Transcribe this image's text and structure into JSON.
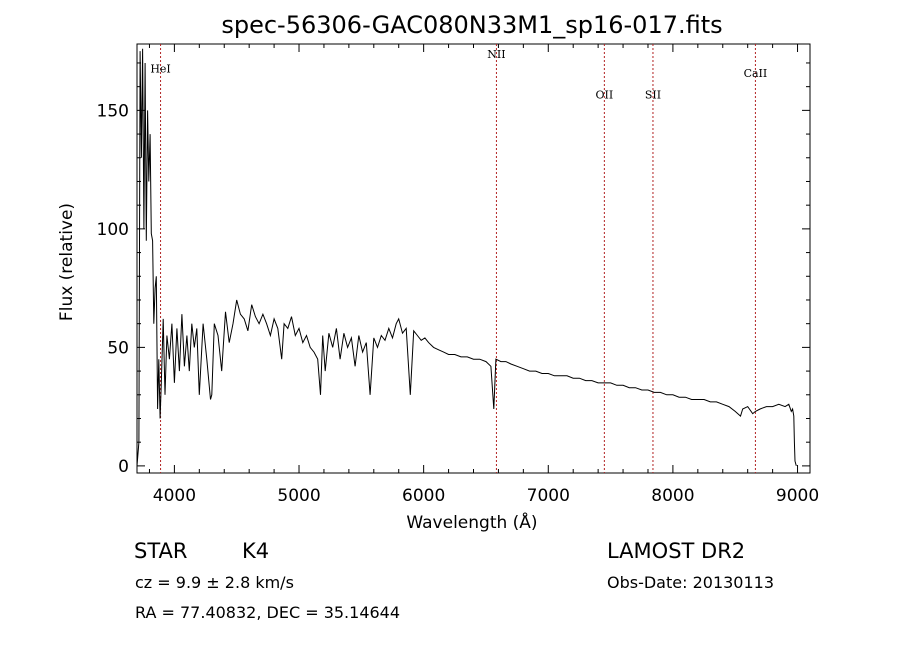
{
  "chart_data": {
    "type": "line",
    "title": "spec-56306-GAC080N33M1_sp16-017.fits",
    "xlabel": "Wavelength (Å)",
    "ylabel": "Flux (relative)",
    "xlim": [
      3700,
      9100
    ],
    "ylim": [
      -3,
      178
    ],
    "xticks": [
      4000,
      5000,
      6000,
      7000,
      8000,
      9000
    ],
    "yticks": [
      0,
      50,
      100,
      150
    ],
    "grid": false,
    "series": [
      {
        "x": [
          3700,
          3715,
          3725,
          3735,
          3745,
          3755,
          3765,
          3775,
          3785,
          3795,
          3805,
          3815,
          3825,
          3835,
          3845,
          3855,
          3865,
          3875,
          3885,
          3895,
          3910,
          3925,
          3940,
          3960,
          3980,
          4000,
          4020,
          4040,
          4060,
          4080,
          4100,
          4120,
          4140,
          4160,
          4180,
          4200,
          4230,
          4260,
          4290,
          4300,
          4320,
          4350,
          4380,
          4410,
          4440,
          4470,
          4500,
          4530,
          4560,
          4590,
          4620,
          4650,
          4680,
          4710,
          4740,
          4770,
          4800,
          4830,
          4861,
          4880,
          4910,
          4940,
          4970,
          5000,
          5030,
          5060,
          5090,
          5120,
          5150,
          5172,
          5190,
          5210,
          5240,
          5270,
          5300,
          5330,
          5360,
          5390,
          5420,
          5450,
          5480,
          5510,
          5540,
          5570,
          5600,
          5630,
          5660,
          5690,
          5720,
          5750,
          5780,
          5800,
          5830,
          5860,
          5893,
          5920,
          5950,
          5980,
          6010,
          6040,
          6080,
          6120,
          6160,
          6200,
          6250,
          6300,
          6350,
          6400,
          6450,
          6500,
          6540,
          6563,
          6580,
          6620,
          6660,
          6700,
          6750,
          6800,
          6850,
          6900,
          6950,
          7000,
          7050,
          7100,
          7150,
          7200,
          7250,
          7300,
          7350,
          7400,
          7450,
          7500,
          7550,
          7600,
          7650,
          7700,
          7750,
          7800,
          7850,
          7900,
          7950,
          8000,
          8050,
          8100,
          8150,
          8200,
          8250,
          8300,
          8350,
          8400,
          8450,
          8500,
          8542,
          8560,
          8600,
          8640,
          8662,
          8700,
          8750,
          8800,
          8850,
          8900,
          8930,
          8950,
          8960,
          8970,
          8975,
          8980,
          8990
        ],
        "values": [
          0,
          10,
          175,
          130,
          176,
          100,
          170,
          95,
          150,
          120,
          140,
          98,
          95,
          60,
          75,
          80,
          24,
          45,
          20,
          35,
          62,
          30,
          55,
          45,
          60,
          35,
          58,
          40,
          64,
          42,
          55,
          40,
          60,
          50,
          58,
          30,
          60,
          45,
          28,
          30,
          60,
          55,
          40,
          65,
          52,
          60,
          70,
          64,
          62,
          57,
          68,
          63,
          60,
          64,
          60,
          55,
          62,
          58,
          45,
          60,
          58,
          63,
          55,
          58,
          52,
          55,
          50,
          48,
          45,
          30,
          55,
          40,
          56,
          50,
          58,
          45,
          56,
          50,
          54,
          42,
          55,
          48,
          52,
          30,
          54,
          50,
          55,
          53,
          58,
          54,
          60,
          62,
          56,
          58,
          30,
          57,
          55,
          53,
          54,
          52,
          50,
          49,
          48,
          47,
          47,
          46,
          46,
          45,
          45,
          44,
          42,
          24,
          45,
          44,
          44,
          43,
          42,
          41,
          40,
          40,
          39,
          39,
          38,
          38,
          38,
          37,
          37,
          36,
          36,
          35,
          35,
          35,
          34,
          34,
          33,
          33,
          32,
          32,
          31,
          31,
          30,
          30,
          29,
          29,
          28,
          28,
          28,
          27,
          27,
          26,
          25,
          23,
          21,
          24,
          25,
          22,
          23,
          24,
          25,
          25,
          26,
          25,
          26,
          23,
          24,
          21,
          10,
          2,
          0
        ]
      }
    ],
    "markers": [
      {
        "label": "HeI",
        "x": 3889,
        "label_y": 166
      },
      {
        "label": "NII",
        "x": 6584,
        "label_y": 172
      },
      {
        "label": "OII",
        "x": 7450,
        "label_y": 155
      },
      {
        "label": "SII",
        "x": 7840,
        "label_y": 155
      },
      {
        "label": "CaII",
        "x": 8662,
        "label_y": 164
      }
    ]
  },
  "info": {
    "object_class": "STAR",
    "subclass": "K4",
    "survey": "LAMOST DR2",
    "cz": "cz = 9.9 ± 2.8 km/s",
    "obs_date": "Obs-Date: 20130113",
    "coords": "RA =  77.40832, DEC =  35.14644"
  },
  "colors": {
    "spectrum": "#000000",
    "marker_line": "#b22222",
    "axis": "#000000"
  }
}
